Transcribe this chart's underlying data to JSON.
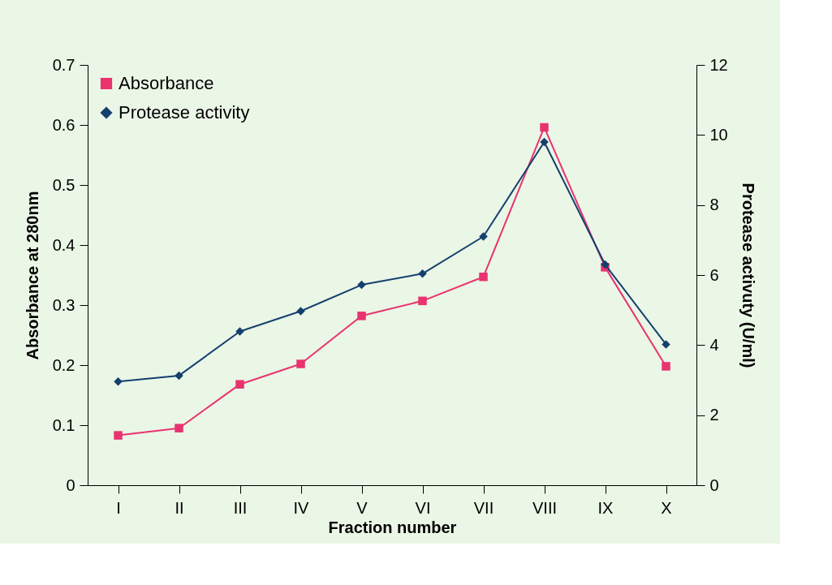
{
  "chart_data": {
    "type": "line",
    "xlabel": "Fraction number",
    "ylabel": "Absorbance at 280nm",
    "y2label": "Protease activuty (U/ml)",
    "categories": [
      "I",
      "II",
      "III",
      "IV",
      "V",
      "VI",
      "VII",
      "VIII",
      "IX",
      "X"
    ],
    "series": [
      {
        "name": "Absorbance",
        "color": "#e8336f",
        "marker": "square",
        "values": [
          0.083,
          0.095,
          0.168,
          0.202,
          0.282,
          0.307,
          0.347,
          0.596,
          0.363,
          0.198
        ]
      },
      {
        "name": "Protease activity",
        "color": "#14406e",
        "marker": "diamond",
        "axis": "y2",
        "values": [
          2.96,
          3.13,
          4.39,
          4.97,
          5.72,
          6.04,
          7.1,
          9.8,
          6.3,
          4.02
        ]
      }
    ],
    "ylim": [
      0,
      0.7
    ],
    "yticks": [
      0,
      0.1,
      0.2,
      0.3,
      0.4,
      0.5,
      0.6,
      0.7
    ],
    "y2lim": [
      0,
      12
    ],
    "y2ticks": [
      0,
      2,
      4,
      6,
      8,
      10,
      12
    ],
    "legend": "top left",
    "grid": false
  }
}
